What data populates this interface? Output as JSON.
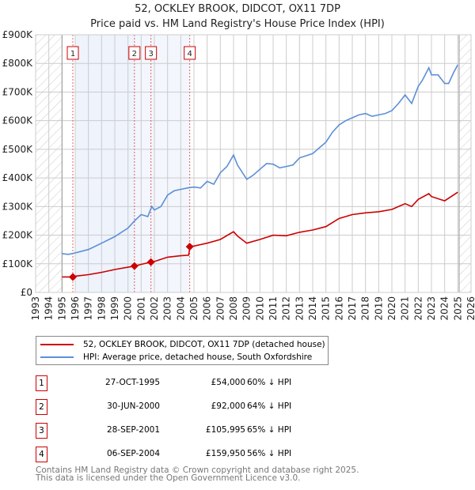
{
  "title_line1": "52, OCKLEY BROOK, DIDCOT, OX11 7DP",
  "title_line2": "Price paid vs. HM Land Registry's House Price Index (HPI)",
  "chart_data": {
    "type": "line",
    "xlim": [
      1993,
      2026
    ],
    "ylim": [
      0,
      900000
    ],
    "xticks": [
      "1993",
      "1994",
      "1995",
      "1996",
      "1997",
      "1998",
      "1999",
      "2000",
      "2001",
      "2002",
      "2003",
      "2004",
      "2005",
      "2006",
      "2007",
      "2008",
      "2009",
      "2010",
      "2011",
      "2012",
      "2013",
      "2014",
      "2015",
      "2016",
      "2017",
      "2018",
      "2019",
      "2020",
      "2021",
      "2022",
      "2023",
      "2024",
      "2025",
      "2026"
    ],
    "yticks": [
      {
        "v": 0,
        "l": "£0"
      },
      {
        "v": 100000,
        "l": "£100K"
      },
      {
        "v": 200000,
        "l": "£200K"
      },
      {
        "v": 300000,
        "l": "£300K"
      },
      {
        "v": 400000,
        "l": "£400K"
      },
      {
        "v": 500000,
        "l": "£500K"
      },
      {
        "v": 600000,
        "l": "£600K"
      },
      {
        "v": 700000,
        "l": "£700K"
      },
      {
        "v": 800000,
        "l": "£800K"
      },
      {
        "v": 900000,
        "l": "£900K"
      }
    ],
    "hatched_before": 1995,
    "hatched_after": 2025.1,
    "series": [
      {
        "name": "HPI: Average price, detached house, South Oxfordshire",
        "color": "#5b8fd6",
        "x": [
          1995,
          1995.5,
          1996,
          1997,
          1998,
          1999,
          2000,
          2000.5,
          2001,
          2001.5,
          2001.8,
          2002,
          2002.5,
          2003,
          2003.5,
          2004,
          2004.5,
          2005,
          2005.5,
          2006,
          2006.5,
          2007,
          2007.5,
          2008,
          2008.3,
          2009,
          2009.5,
          2010,
          2010.5,
          2011,
          2011.5,
          2012,
          2012.5,
          2013,
          2014,
          2014.5,
          2015,
          2015.5,
          2016,
          2016.5,
          2017,
          2017.5,
          2018,
          2018.5,
          2019,
          2019.5,
          2020,
          2020.5,
          2021,
          2021.5,
          2022,
          2022.3,
          2022.8,
          2023,
          2023.5,
          2024,
          2024.3,
          2024.7,
          2025
        ],
        "y": [
          135000,
          133000,
          138000,
          150000,
          172000,
          195000,
          225000,
          250000,
          272000,
          265000,
          300000,
          288000,
          300000,
          340000,
          355000,
          360000,
          365000,
          368000,
          365000,
          388000,
          378000,
          418000,
          440000,
          480000,
          445000,
          395000,
          410000,
          430000,
          450000,
          448000,
          435000,
          440000,
          445000,
          470000,
          485000,
          505000,
          525000,
          560000,
          585000,
          600000,
          610000,
          620000,
          625000,
          615000,
          620000,
          625000,
          635000,
          660000,
          690000,
          660000,
          720000,
          740000,
          785000,
          760000,
          760000,
          730000,
          730000,
          770000,
          795000
        ]
      },
      {
        "name": "52, OCKLEY BROOK, DIDCOT, OX11 7DP (detached house)",
        "color": "#cc0000",
        "x": [
          1995,
          1995.8,
          1996,
          1997,
          1998,
          1999,
          2000,
          2000.5,
          2001,
          2001.75,
          2002,
          2003,
          2004,
          2004.6,
          2004.7,
          2005,
          2006,
          2007,
          2008,
          2008.3,
          2009,
          2010,
          2011,
          2012,
          2013,
          2014,
          2015,
          2016,
          2017,
          2018,
          2019,
          2020,
          2021,
          2021.5,
          2022,
          2022.8,
          2023,
          2024,
          2025
        ],
        "y": [
          54000,
          54000,
          57000,
          62000,
          70000,
          80000,
          88000,
          92000,
          98000,
          106000,
          108000,
          123000,
          128000,
          130000,
          160000,
          162000,
          172000,
          185000,
          212000,
          197000,
          172000,
          185000,
          200000,
          198000,
          210000,
          218000,
          230000,
          258000,
          272000,
          278000,
          282000,
          290000,
          310000,
          300000,
          325000,
          345000,
          335000,
          320000,
          350000
        ]
      }
    ],
    "sales": [
      {
        "n": "1",
        "x": 1995.82,
        "y": 54000
      },
      {
        "n": "2",
        "x": 2000.49,
        "y": 92000
      },
      {
        "n": "3",
        "x": 2001.74,
        "y": 105995
      },
      {
        "n": "4",
        "x": 2004.68,
        "y": 159950
      }
    ]
  },
  "legend": {
    "property": "52, OCKLEY BROOK, DIDCOT, OX11 7DP (detached house)",
    "hpi": "HPI: Average price, detached house, South Oxfordshire"
  },
  "transactions": [
    {
      "n": "1",
      "date": "27-OCT-1995",
      "price": "£54,000",
      "hpi": "60% ↓ HPI"
    },
    {
      "n": "2",
      "date": "30-JUN-2000",
      "price": "£92,000",
      "hpi": "64% ↓ HPI"
    },
    {
      "n": "3",
      "date": "28-SEP-2001",
      "price": "£105,995",
      "hpi": "65% ↓ HPI"
    },
    {
      "n": "4",
      "date": "06-SEP-2004",
      "price": "£159,950",
      "hpi": "56% ↓ HPI"
    }
  ],
  "footer": {
    "line1": "Contains HM Land Registry data © Crown copyright and database right 2025.",
    "line2": "This data is licensed under the Open Government Licence v3.0."
  }
}
